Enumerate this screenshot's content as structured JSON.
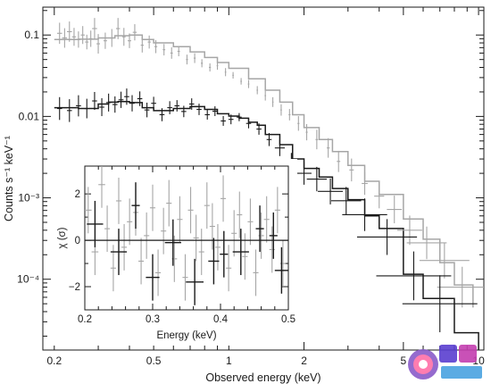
{
  "chart_data": [
    {
      "type": "line",
      "role": "main-spectrum",
      "title": "",
      "xlabel": "Observed energy (keV)",
      "ylabel": "Counts s⁻¹ keV⁻¹",
      "xscale": "log",
      "yscale": "log",
      "xlim": [
        0.18,
        10.5
      ],
      "ylim": [
        1.35e-05,
        0.22
      ],
      "x_tick_values": [
        0.2,
        0.5,
        1,
        2,
        5,
        10
      ],
      "x_tick_labels": [
        "0.2",
        "0.5",
        "1",
        "2",
        "5",
        "10"
      ],
      "y_tick_values": [
        0.1,
        0.01,
        0.001,
        0.0001
      ],
      "y_tick_labels": [
        "0.1",
        "0.01",
        "10⁻³",
        "10⁻⁴"
      ],
      "grid": false,
      "legend": "none",
      "series": [
        {
          "color": "#a6a6a6",
          "kind": "data-points-with-error-bars",
          "points": [
            [
              0.21,
              0.105,
              0.01,
              0.13
            ],
            [
              0.22,
              0.092,
              0.01,
              0.12
            ],
            [
              0.23,
              0.11,
              0.01,
              0.125
            ],
            [
              0.24,
              0.095,
              0.008,
              0.11
            ],
            [
              0.25,
              0.088,
              0.008,
              0.1
            ],
            [
              0.26,
              0.1,
              0.008,
              0.11
            ],
            [
              0.27,
              0.082,
              0.007,
              0.09
            ],
            [
              0.28,
              0.09,
              0.007,
              0.1
            ],
            [
              0.29,
              0.12,
              0.01,
              0.13
            ],
            [
              0.3,
              0.078,
              0.007,
              0.12
            ],
            [
              0.32,
              0.085,
              0.007,
              0.1
            ],
            [
              0.34,
              0.092,
              0.007,
              0.11
            ],
            [
              0.36,
              0.12,
              0.008,
              0.13
            ],
            [
              0.38,
              0.095,
              0.007,
              0.11
            ],
            [
              0.4,
              0.085,
              0.007,
              0.09
            ],
            [
              0.42,
              0.108,
              0.008,
              0.1
            ],
            [
              0.45,
              0.075,
              0.006,
              0.09
            ],
            [
              0.48,
              0.082,
              0.006,
              0.08
            ],
            [
              0.51,
              0.072,
              0.006,
              0.08
            ],
            [
              0.55,
              0.066,
              0.005,
              0.07
            ],
            [
              0.59,
              0.06,
              0.005,
              0.07
            ],
            [
              0.63,
              0.063,
              0.005,
              0.06
            ],
            [
              0.68,
              0.05,
              0.004,
              0.06
            ],
            [
              0.73,
              0.052,
              0.004,
              0.06
            ],
            [
              0.78,
              0.045,
              0.004,
              0.05
            ],
            [
              0.84,
              0.04,
              0.004,
              0.05
            ],
            [
              0.9,
              0.042,
              0.003,
              0.05
            ],
            [
              0.97,
              0.035,
              0.003,
              0.05
            ],
            [
              1.04,
              0.032,
              0.003,
              0.04
            ],
            [
              1.12,
              0.027,
              0.003,
              0.04
            ],
            [
              1.2,
              0.025,
              0.003,
              0.05
            ],
            [
              1.3,
              0.021,
              0.003,
              0.05
            ],
            [
              1.4,
              0.018,
              0.003,
              0.06
            ],
            [
              1.5,
              0.015,
              0.003,
              0.06
            ],
            [
              1.62,
              0.012,
              0.003,
              0.07
            ],
            [
              1.75,
              0.0105,
              0.004,
              0.07
            ],
            [
              1.9,
              0.0082,
              0.004,
              0.09
            ],
            [
              2.05,
              0.0064,
              0.004,
              0.1
            ],
            [
              2.25,
              0.0052,
              0.005,
              0.12
            ],
            [
              2.5,
              0.0041,
              0.006,
              0.12
            ],
            [
              2.75,
              0.0028,
              0.007,
              0.13
            ],
            [
              3.1,
              0.0022,
              0.009,
              0.14
            ],
            [
              3.5,
              0.0015,
              0.012,
              0.14
            ],
            [
              4.0,
              0.00105,
              0.02,
              0.15
            ],
            [
              4.6,
              0.00072,
              0.03,
              0.17
            ],
            [
              5.3,
              0.0004,
              0.05,
              0.18
            ],
            [
              6.2,
              0.00028,
              0.08,
              0.2
            ],
            [
              7.3,
              0.00017,
              0.1,
              0.22
            ],
            [
              8.6,
              8e-05,
              0.1,
              0.25
            ]
          ]
        },
        {
          "color": "#1a1a1a",
          "kind": "data-points-with-error-bars",
          "points": [
            [
              0.21,
              0.0125,
              0.01,
              0.14
            ],
            [
              0.23,
              0.0118,
              0.01,
              0.14
            ],
            [
              0.25,
              0.0135,
              0.01,
              0.13
            ],
            [
              0.27,
              0.0125,
              0.01,
              0.12
            ],
            [
              0.29,
              0.0155,
              0.01,
              0.11
            ],
            [
              0.31,
              0.013,
              0.01,
              0.11
            ],
            [
              0.33,
              0.0148,
              0.01,
              0.11
            ],
            [
              0.35,
              0.014,
              0.01,
              0.1
            ],
            [
              0.37,
              0.016,
              0.01,
              0.1
            ],
            [
              0.39,
              0.0175,
              0.01,
              0.1
            ],
            [
              0.41,
              0.0145,
              0.01,
              0.1
            ],
            [
              0.44,
              0.0165,
              0.01,
              0.09
            ],
            [
              0.47,
              0.012,
              0.01,
              0.09
            ],
            [
              0.5,
              0.0145,
              0.01,
              0.08
            ],
            [
              0.54,
              0.0105,
              0.01,
              0.08
            ],
            [
              0.58,
              0.0128,
              0.01,
              0.08
            ],
            [
              0.62,
              0.0135,
              0.01,
              0.07
            ],
            [
              0.66,
              0.0115,
              0.01,
              0.07
            ],
            [
              0.71,
              0.0142,
              0.01,
              0.07
            ],
            [
              0.76,
              0.0122,
              0.01,
              0.07
            ],
            [
              0.82,
              0.0105,
              0.01,
              0.06
            ],
            [
              0.88,
              0.0116,
              0.01,
              0.06
            ],
            [
              0.95,
              0.0088,
              0.01,
              0.06
            ],
            [
              1.02,
              0.0092,
              0.01,
              0.06
            ],
            [
              1.1,
              0.0098,
              0.01,
              0.05
            ],
            [
              1.2,
              0.0082,
              0.01,
              0.06
            ],
            [
              1.32,
              0.007,
              0.01,
              0.07
            ],
            [
              1.45,
              0.0052,
              0.01,
              0.08
            ],
            [
              1.6,
              0.0041,
              0.02,
              0.1
            ],
            [
              1.78,
              0.0027,
              0.02,
              0.12
            ],
            [
              2.0,
              0.002,
              0.03,
              0.14
            ],
            [
              2.25,
              0.0017,
              0.04,
              0.15
            ],
            [
              2.55,
              0.0012,
              0.05,
              0.16
            ],
            [
              2.95,
              0.00092,
              0.06,
              0.17
            ],
            [
              3.5,
              0.00062,
              0.09,
              0.2
            ],
            [
              4.3,
              0.00033,
              0.12,
              0.22
            ],
            [
              5.5,
              0.00011,
              0.15,
              0.3
            ],
            [
              7.0,
              5e-05,
              0.15,
              0.35
            ]
          ]
        }
      ],
      "model_curves": [
        {
          "color": "#a6a6a6",
          "kind": "model-step",
          "points": [
            [
              0.2,
              0.088
            ],
            [
              0.25,
              0.089
            ],
            [
              0.3,
              0.092
            ],
            [
              0.35,
              0.098
            ],
            [
              0.4,
              0.1
            ],
            [
              0.45,
              0.088
            ],
            [
              0.5,
              0.08
            ],
            [
              0.6,
              0.072
            ],
            [
              0.7,
              0.062
            ],
            [
              0.8,
              0.053
            ],
            [
              0.9,
              0.046
            ],
            [
              1.0,
              0.039
            ],
            [
              1.2,
              0.029
            ],
            [
              1.4,
              0.021
            ],
            [
              1.6,
              0.015
            ],
            [
              1.8,
              0.0105
            ],
            [
              2.0,
              0.0073
            ],
            [
              2.3,
              0.0052
            ],
            [
              2.6,
              0.0037
            ],
            [
              3.0,
              0.0025
            ],
            [
              3.5,
              0.0016
            ],
            [
              4.0,
              0.0011
            ],
            [
              5.0,
              0.00055
            ],
            [
              6.0,
              0.00031
            ],
            [
              7.0,
              0.00016
            ],
            [
              8.0,
              8.5e-05
            ],
            [
              9.5,
              4.5e-05
            ]
          ]
        },
        {
          "color": "#1a1a1a",
          "kind": "model-step",
          "points": [
            [
              0.2,
              0.0128
            ],
            [
              0.25,
              0.0125
            ],
            [
              0.3,
              0.0142
            ],
            [
              0.33,
              0.015
            ],
            [
              0.36,
              0.0152
            ],
            [
              0.4,
              0.0148
            ],
            [
              0.45,
              0.0128
            ],
            [
              0.5,
              0.0118
            ],
            [
              0.6,
              0.0125
            ],
            [
              0.7,
              0.0132
            ],
            [
              0.8,
              0.0122
            ],
            [
              0.9,
              0.0108
            ],
            [
              1.0,
              0.0101
            ],
            [
              1.1,
              0.0095
            ],
            [
              1.2,
              0.0085
            ],
            [
              1.3,
              0.0078
            ],
            [
              1.4,
              0.006
            ],
            [
              1.6,
              0.0045
            ],
            [
              1.8,
              0.003
            ],
            [
              2.0,
              0.0023
            ],
            [
              2.3,
              0.0018
            ],
            [
              2.6,
              0.0013
            ],
            [
              3.0,
              0.00095
            ],
            [
              3.5,
              0.0006
            ],
            [
              4.0,
              0.00042
            ],
            [
              5.0,
              0.000115
            ],
            [
              6.0,
              5.8e-05
            ],
            [
              8.0,
              2.2e-05
            ],
            [
              10.0,
              1e-05
            ]
          ]
        }
      ]
    },
    {
      "type": "scatter",
      "role": "inset-residuals",
      "title": "",
      "xlabel": "Energy (keV)",
      "ylabel": "χ (σ)",
      "xlim": [
        0.2,
        0.5
      ],
      "ylim": [
        -3.0,
        3.2
      ],
      "x_tick_values": [
        0.2,
        0.3,
        0.4,
        0.5
      ],
      "x_tick_labels": [
        "0.2",
        "0.3",
        "0.4",
        "0.5"
      ],
      "y_tick_values": [
        2,
        0,
        -2
      ],
      "y_tick_labels": [
        "2",
        "0",
        "−2"
      ],
      "zero_line": 0,
      "grid": false,
      "series": [
        {
          "color": "#a6a6a6",
          "points": [
            [
              0.205,
              1.3,
              0.005
            ],
            [
              0.215,
              -0.5,
              0.005
            ],
            [
              0.225,
              2.4,
              0.005
            ],
            [
              0.233,
              0.5,
              0.004
            ],
            [
              0.242,
              -1.2,
              0.004
            ],
            [
              0.25,
              1.7,
              0.004
            ],
            [
              0.258,
              -0.3,
              0.004
            ],
            [
              0.266,
              0.8,
              0.004
            ],
            [
              0.275,
              1.2,
              0.004
            ],
            [
              0.283,
              -0.9,
              0.004
            ],
            [
              0.291,
              0.2,
              0.004
            ],
            [
              0.3,
              1.4,
              0.004
            ],
            [
              0.308,
              -1.4,
              0.004
            ],
            [
              0.316,
              0.4,
              0.004
            ],
            [
              0.324,
              1.6,
              0.004
            ],
            [
              0.332,
              -0.8,
              0.004
            ],
            [
              0.34,
              0.9,
              0.004
            ],
            [
              0.348,
              -1.6,
              0.004
            ],
            [
              0.356,
              1.3,
              0.004
            ],
            [
              0.364,
              0.1,
              0.004
            ],
            [
              0.372,
              -0.5,
              0.004
            ],
            [
              0.38,
              1.5,
              0.004
            ],
            [
              0.388,
              0.6,
              0.004
            ],
            [
              0.396,
              -0.3,
              0.004
            ],
            [
              0.404,
              1.8,
              0.004
            ],
            [
              0.412,
              -1.2,
              0.004
            ],
            [
              0.42,
              0.3,
              0.004
            ],
            [
              0.428,
              1.1,
              0.004
            ],
            [
              0.436,
              -0.7,
              0.004
            ],
            [
              0.444,
              0.8,
              0.004
            ],
            [
              0.452,
              -1.4,
              0.004
            ],
            [
              0.46,
              0.2,
              0.004
            ],
            [
              0.468,
              0.9,
              0.004
            ],
            [
              0.476,
              -0.4,
              0.004
            ],
            [
              0.484,
              1.3,
              0.004
            ],
            [
              0.492,
              -1.0,
              0.004
            ]
          ]
        },
        {
          "color": "#1a1a1a",
          "points": [
            [
              0.215,
              0.7,
              0.012
            ],
            [
              0.25,
              -0.5,
              0.012
            ],
            [
              0.275,
              1.5,
              0.006
            ],
            [
              0.3,
              -1.6,
              0.01
            ],
            [
              0.33,
              -0.1,
              0.012
            ],
            [
              0.362,
              -1.8,
              0.013
            ],
            [
              0.39,
              -0.9,
              0.008
            ],
            [
              0.405,
              -0.6,
              0.006
            ],
            [
              0.43,
              -0.5,
              0.012
            ],
            [
              0.458,
              0.5,
              0.006
            ],
            [
              0.478,
              0.2,
              0.006
            ],
            [
              0.49,
              -1.3,
              0.01
            ]
          ]
        }
      ]
    }
  ]
}
